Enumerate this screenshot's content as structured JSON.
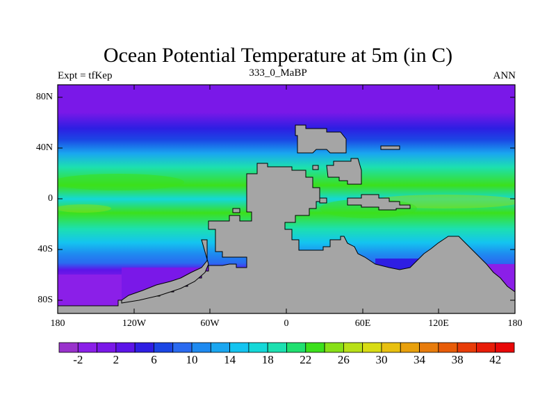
{
  "chart_data": {
    "type": "heatmap",
    "title": "Ocean Potential Temperature at 5m (in C)",
    "subtitle_left": "Expt = tfKep",
    "subtitle_center": "333_0_MaBP",
    "subtitle_right": "ANN",
    "x_ticks": [
      "180",
      "120W",
      "60W",
      "0",
      "60E",
      "120E",
      "180"
    ],
    "y_ticks": [
      "80N",
      "40N",
      "0",
      "40S",
      "80S"
    ],
    "colorbar": {
      "tick_labels": [
        "-2",
        "2",
        "6",
        "10",
        "14",
        "18",
        "22",
        "26",
        "30",
        "34",
        "38",
        "42"
      ],
      "colors": [
        "#9932CC",
        "#8B1FE8",
        "#7A18E8",
        "#5C14E8",
        "#2E1EE3",
        "#1B46E4",
        "#2A6AF0",
        "#1E8AF0",
        "#1AA6F0",
        "#14C4F0",
        "#14D8D8",
        "#1CE0B0",
        "#20E070",
        "#3CE01C",
        "#88E018",
        "#B8E018",
        "#D8DC14",
        "#E8C010",
        "#E8A00C",
        "#E87C0C",
        "#E85C08",
        "#E83C08",
        "#E81C08",
        "#E80808"
      ]
    },
    "land_color": "#A5A5A5"
  }
}
